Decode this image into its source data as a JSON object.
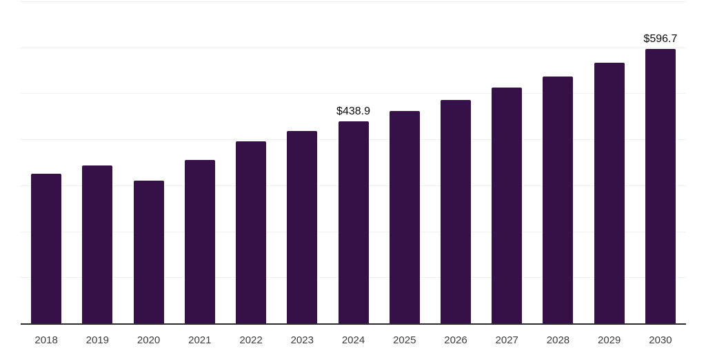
{
  "chart_data": {
    "type": "bar",
    "title": "",
    "xlabel": "",
    "ylabel": "",
    "categories": [
      "2018",
      "2019",
      "2020",
      "2021",
      "2022",
      "2023",
      "2024",
      "2025",
      "2026",
      "2027",
      "2028",
      "2029",
      "2030"
    ],
    "values": [
      325,
      343,
      311,
      355,
      395,
      418,
      438.9,
      461,
      485,
      512,
      537,
      566,
      596.7
    ],
    "point_labels": [
      "",
      "",
      "",
      "",
      "",
      "",
      "$438.9",
      "",
      "",
      "",
      "",
      "",
      "$596.7"
    ],
    "ylim": [
      0,
      700
    ],
    "gridline_interval": 100,
    "grid": "horizontal",
    "y_tick_labels_visible": false,
    "legend": "none",
    "bar_color": "#351148",
    "gridline_color": "#f1f1f3",
    "axis_line_color": "#2d2d2d",
    "value_label_color": "#0a0a0a",
    "tick_label_color": "#3b3b3b",
    "background_color": "#ffffff"
  }
}
